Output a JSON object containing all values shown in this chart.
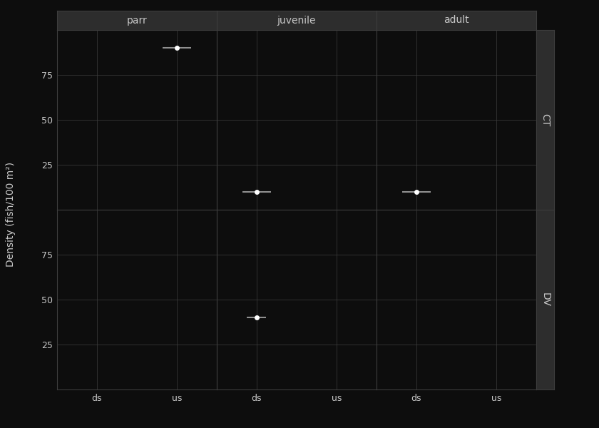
{
  "cols": [
    "parr",
    "juvenile",
    "adult"
  ],
  "rows": [
    "CT",
    "DV"
  ],
  "x_labels": [
    "ds",
    "us"
  ],
  "x_positions": [
    1,
    2
  ],
  "bg_color": "#0d0d0d",
  "panel_bg": "#0d0d0d",
  "strip_bg": "#2d2d2d",
  "grid_color": "#3d3d3d",
  "text_color": "#c8c8c8",
  "point_color": "#ffffff",
  "line_color": "#909090",
  "ylabel": "Density (fish/100 m²)",
  "ylim": [
    0,
    100
  ],
  "yticks": [
    25,
    50,
    75
  ],
  "data": {
    "CT": {
      "parr": {
        "ds": null,
        "us": {
          "y": 90,
          "xlo": 0.18,
          "xhi": 0.18
        }
      },
      "juvenile": {
        "ds": {
          "y": 10,
          "xlo": 0.18,
          "xhi": 0.18
        },
        "us": null
      },
      "adult": {
        "ds": {
          "y": 10,
          "xlo": 0.18,
          "xhi": 0.18
        },
        "us": null
      }
    },
    "DV": {
      "parr": {
        "ds": null,
        "us": null
      },
      "juvenile": {
        "ds": {
          "y": 40,
          "xlo": 0.12,
          "xhi": 0.12
        },
        "us": null
      },
      "adult": {
        "ds": null,
        "us": null
      }
    }
  },
  "strip_label_fontsize": 10,
  "axis_label_fontsize": 10,
  "tick_fontsize": 9,
  "point_size": 5,
  "line_width": 1.5
}
